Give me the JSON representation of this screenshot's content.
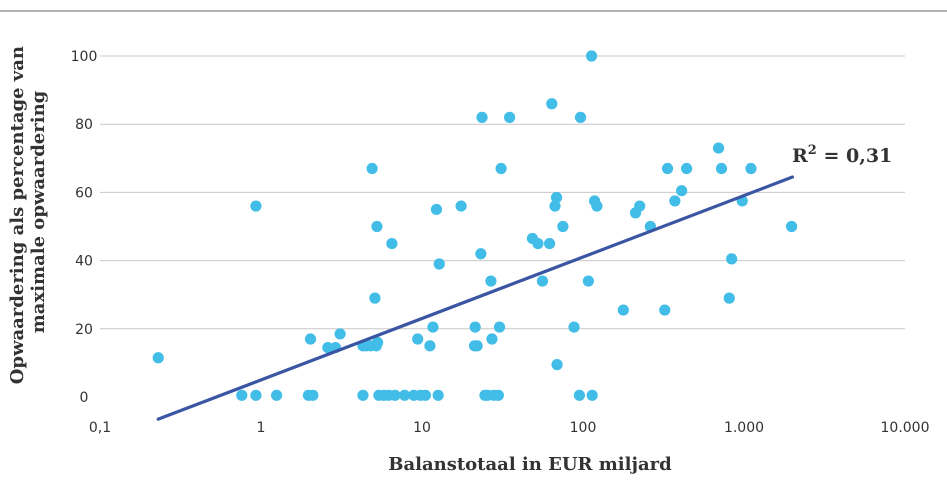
{
  "chart_data": {
    "type": "scatter",
    "xscale": "log",
    "xlim": [
      0.1,
      10000
    ],
    "ylim": [
      0,
      100
    ],
    "xlabel": "Balanstotaal in EUR miljard",
    "ylabel_lines": [
      "Opwaardering als percentage van",
      "maximale opwaardering"
    ],
    "x_ticks": [
      {
        "value": 0.1,
        "label": "0,1"
      },
      {
        "value": 1,
        "label": "1"
      },
      {
        "value": 10,
        "label": "10"
      },
      {
        "value": 100,
        "label": "100"
      },
      {
        "value": 1000,
        "label": "1.000"
      },
      {
        "value": 10000,
        "label": "10.000"
      }
    ],
    "y_ticks": [
      {
        "value": 0,
        "label": "0"
      },
      {
        "value": 20,
        "label": "20"
      },
      {
        "value": 40,
        "label": "40"
      },
      {
        "value": 60,
        "label": "60"
      },
      {
        "value": 80,
        "label": "80"
      },
      {
        "value": 100,
        "label": "100"
      }
    ],
    "grid": {
      "horizontal": true,
      "vertical": false
    },
    "points": [
      [
        0.23,
        11.5
      ],
      [
        0.76,
        0.5
      ],
      [
        0.93,
        0.5
      ],
      [
        0.93,
        56
      ],
      [
        1.25,
        0.5
      ],
      [
        1.97,
        0.5
      ],
      [
        2.03,
        17
      ],
      [
        2.1,
        0.5
      ],
      [
        2.6,
        14.5
      ],
      [
        2.9,
        14.5
      ],
      [
        3.1,
        18.5
      ],
      [
        4.3,
        0.5
      ],
      [
        4.3,
        15
      ],
      [
        4.5,
        15
      ],
      [
        4.8,
        15
      ],
      [
        4.9,
        67
      ],
      [
        5.1,
        29
      ],
      [
        5.2,
        15
      ],
      [
        5.25,
        50
      ],
      [
        5.3,
        16
      ],
      [
        5.4,
        0.5
      ],
      [
        5.8,
        0.5
      ],
      [
        6.2,
        0.5
      ],
      [
        6.5,
        45
      ],
      [
        6.8,
        0.5
      ],
      [
        7.8,
        0.5
      ],
      [
        8.9,
        0.5
      ],
      [
        9.4,
        17
      ],
      [
        9.8,
        0.5
      ],
      [
        10.5,
        0.5
      ],
      [
        11.2,
        15
      ],
      [
        11.7,
        20.5
      ],
      [
        12.3,
        55
      ],
      [
        12.6,
        0.5
      ],
      [
        12.8,
        39
      ],
      [
        17.5,
        56
      ],
      [
        21.2,
        15
      ],
      [
        21.4,
        20.5
      ],
      [
        22.0,
        15
      ],
      [
        23.2,
        42
      ],
      [
        23.6,
        82
      ],
      [
        24.6,
        0.5
      ],
      [
        25.6,
        0.5
      ],
      [
        26.8,
        34
      ],
      [
        27.2,
        17
      ],
      [
        28.0,
        0.5
      ],
      [
        29.8,
        0.5
      ],
      [
        30.3,
        20.5
      ],
      [
        31.0,
        67
      ],
      [
        35.0,
        82
      ],
      [
        48.5,
        46.5
      ],
      [
        52.5,
        45
      ],
      [
        56.0,
        34
      ],
      [
        62.0,
        45
      ],
      [
        64.0,
        86
      ],
      [
        67.0,
        56
      ],
      [
        68.5,
        58.5
      ],
      [
        69.0,
        9.5
      ],
      [
        75.0,
        50
      ],
      [
        88.0,
        20.5
      ],
      [
        95.0,
        0.5
      ],
      [
        96.5,
        82
      ],
      [
        108.0,
        34
      ],
      [
        113.0,
        100
      ],
      [
        114.0,
        0.5
      ],
      [
        118.0,
        57.5
      ],
      [
        122.0,
        56
      ],
      [
        178.0,
        25.5
      ],
      [
        212.0,
        54
      ],
      [
        225.0,
        56
      ],
      [
        262.0,
        50
      ],
      [
        322.0,
        25.5
      ],
      [
        335.0,
        67
      ],
      [
        372.0,
        57.5
      ],
      [
        410.0,
        60.5
      ],
      [
        440.0,
        67
      ],
      [
        695.0,
        73
      ],
      [
        725.0,
        67
      ],
      [
        810.0,
        29
      ],
      [
        838.0,
        40.5
      ],
      [
        975.0,
        57.5
      ],
      [
        1105.0,
        67
      ],
      [
        1975.0,
        50
      ]
    ],
    "trendline": {
      "from": {
        "x": 0.23,
        "y": -6.5
      },
      "to": {
        "x": 2000,
        "y": 64.5
      },
      "color": "#3a56a3"
    },
    "annotation": {
      "r2_base": "R",
      "r2_exp": "2",
      "r2_rest": " = 0,31"
    },
    "point_color": "#41bde8",
    "grid_color": "#c8c8c8",
    "frame_color": "#9a9a9a"
  }
}
